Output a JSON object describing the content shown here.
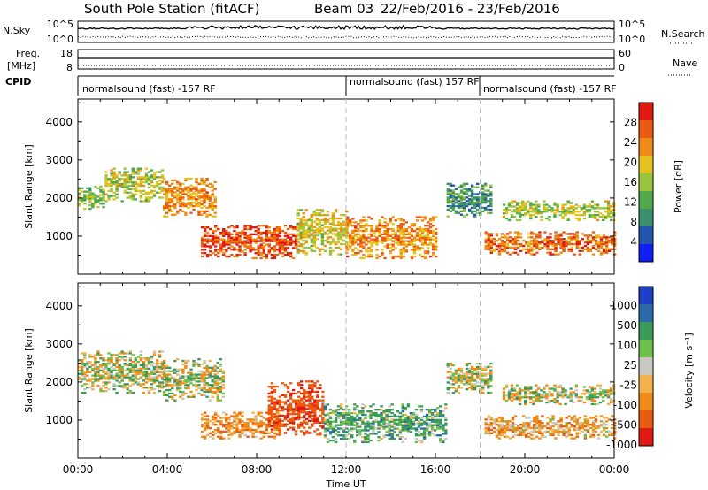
{
  "header": {
    "station": "South Pole Station (fitACF)",
    "beam": "Beam 03",
    "dates": "22/Feb/2016 - 23/Feb/2016"
  },
  "top_panels": {
    "nsky_label": "N.Sky",
    "nsky_top": "10^5",
    "nsky_bottom": "10^0",
    "nsearch_label": "N.Search",
    "nsearch_top": "10^5",
    "nsearch_bottom": "10^0",
    "freq_label_1": "Freq.",
    "freq_label_2": "[MHz]",
    "freq_top": "18",
    "freq_bottom": "8",
    "nave_label": "Nave",
    "nave_top": "60",
    "nave_bottom": "0",
    "cpid_label": "CPID",
    "cpid_segments": [
      {
        "text": "normalsound (fast) -157 RF",
        "start_hour": 0
      },
      {
        "text": "normalsound (fast) 157 RF",
        "start_hour": 12
      },
      {
        "text": "normalsound (fast) -157 RF",
        "start_hour": 18
      }
    ]
  },
  "colors": {
    "power_colorbar": [
      "#0d1ff2",
      "#2355b0",
      "#3a8f6e",
      "#4fa84a",
      "#9ac43c",
      "#e6c21e",
      "#f08a14",
      "#ec5a10",
      "#e01a10"
    ],
    "velocity_colorbar": [
      "#e01a10",
      "#ec5a10",
      "#f08a14",
      "#f6b24a",
      "#c8c8c0",
      "#6cc04a",
      "#3a9a5a",
      "#2a6aa8",
      "#1d3fc8"
    ]
  },
  "colorbars": {
    "power": {
      "label": "Power [dB]",
      "ticks": [
        "28",
        "24",
        "20",
        "16",
        "12",
        "8",
        "4"
      ]
    },
    "velocity": {
      "label": "Velocity [m s⁻¹]",
      "ticks": [
        "1000",
        "500",
        "100",
        "25",
        "-25",
        "-100",
        "-500",
        "-1000"
      ]
    }
  },
  "chart_data": [
    {
      "type": "heatmap",
      "panel": "power",
      "ylabel": "Slant Range [km]",
      "xlabel": "Time UT",
      "yticks": [
        "1000",
        "2000",
        "3000",
        "4000"
      ],
      "xticks": [
        "00:00",
        "04:00",
        "08:00",
        "12:00",
        "16:00",
        "20:00",
        "00:00"
      ],
      "ylim": [
        0,
        4600
      ],
      "xlim_hours": [
        0,
        24
      ],
      "colorbar": "Power [dB]",
      "echo_regions": [
        {
          "t_start": 0.0,
          "t_end": 1.2,
          "range_low": 1700,
          "range_high": 2300,
          "value_db": 14
        },
        {
          "t_start": 1.2,
          "t_end": 3.8,
          "range_low": 1900,
          "range_high": 2800,
          "value_db": 16
        },
        {
          "t_start": 3.8,
          "t_end": 6.2,
          "range_low": 1500,
          "range_high": 2500,
          "value_db": 22
        },
        {
          "t_start": 5.5,
          "t_end": 9.8,
          "range_low": 400,
          "range_high": 1300,
          "value_db": 26
        },
        {
          "t_start": 9.8,
          "t_end": 12.0,
          "range_low": 500,
          "range_high": 1700,
          "value_db": 18
        },
        {
          "t_start": 12.0,
          "t_end": 16.0,
          "range_low": 400,
          "range_high": 1500,
          "value_db": 22
        },
        {
          "t_start": 16.5,
          "t_end": 18.5,
          "range_low": 1500,
          "range_high": 2400,
          "value_db": 10
        },
        {
          "t_start": 18.2,
          "t_end": 24.0,
          "range_low": 500,
          "range_high": 1100,
          "value_db": 24
        },
        {
          "t_start": 19.0,
          "t_end": 24.0,
          "range_low": 1400,
          "range_high": 1900,
          "value_db": 16
        }
      ]
    },
    {
      "type": "heatmap",
      "panel": "velocity",
      "ylabel": "Slant Range [km]",
      "xlabel": "Time UT",
      "yticks": [
        "1000",
        "2000",
        "3000",
        "4000"
      ],
      "xticks": [
        "00:00",
        "04:00",
        "08:00",
        "12:00",
        "16:00",
        "20:00",
        "00:00"
      ],
      "ylim": [
        0,
        4600
      ],
      "xlim_hours": [
        0,
        24
      ],
      "colorbar": "Velocity [m s⁻¹]",
      "echo_regions": [
        {
          "t_start": 0.0,
          "t_end": 3.8,
          "range_low": 1700,
          "range_high": 2800,
          "value_ms": 0
        },
        {
          "t_start": 3.8,
          "t_end": 6.5,
          "range_low": 1500,
          "range_high": 2600,
          "value_ms": 0
        },
        {
          "t_start": 5.5,
          "t_end": 9.0,
          "range_low": 500,
          "range_high": 1200,
          "value_ms": -200
        },
        {
          "t_start": 8.5,
          "t_end": 11.0,
          "range_low": 600,
          "range_high": 2000,
          "value_ms": -600
        },
        {
          "t_start": 11.0,
          "t_end": 16.5,
          "range_low": 400,
          "range_high": 1400,
          "value_ms": 150
        },
        {
          "t_start": 16.5,
          "t_end": 18.5,
          "range_low": 1700,
          "range_high": 2500,
          "value_ms": 0
        },
        {
          "t_start": 18.2,
          "t_end": 24.0,
          "range_low": 500,
          "range_high": 1100,
          "value_ms": -150
        },
        {
          "t_start": 19.0,
          "t_end": 24.0,
          "range_low": 1400,
          "range_high": 1900,
          "value_ms": 0
        }
      ]
    }
  ]
}
